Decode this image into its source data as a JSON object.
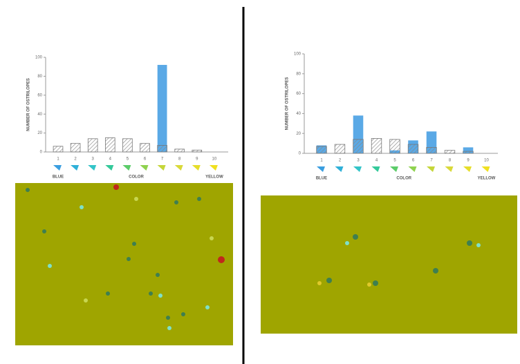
{
  "chart_data": [
    {
      "type": "bar",
      "ylabel": "NUMBER OF OSTRILOPES",
      "xlabel": "COLOR",
      "left_label": "BLUE",
      "right_label": "YELLOW",
      "categories": [
        "1",
        "2",
        "3",
        "4",
        "5",
        "6",
        "7",
        "8",
        "9",
        "10"
      ],
      "category_colors": [
        "#3a9ee0",
        "#2fb0d8",
        "#33c4c8",
        "#34c99a",
        "#5ccc6a",
        "#8fd24f",
        "#c5d63a",
        "#d9d93a",
        "#e6de2a",
        "#f0e020"
      ],
      "series": [
        {
          "color": "#5aa9e6",
          "fill": "solid",
          "values": [
            0,
            0,
            0,
            0,
            0,
            0,
            92,
            0,
            0,
            0
          ]
        },
        {
          "color": "#777777",
          "fill": "hatch",
          "values": [
            6,
            9,
            14,
            15,
            14,
            9,
            7,
            3,
            2,
            0
          ]
        }
      ],
      "ylim": [
        0,
        100
      ],
      "yticks": [
        0,
        20,
        40,
        60,
        80,
        100
      ]
    },
    {
      "type": "bar",
      "ylabel": "NUMBER OF OSTRILOPES",
      "xlabel": "COLOR",
      "left_label": "BLUE",
      "right_label": "YELLOW",
      "categories": [
        "1",
        "2",
        "3",
        "4",
        "5",
        "6",
        "7",
        "8",
        "9",
        "10"
      ],
      "category_colors": [
        "#3a9ee0",
        "#2fb0d8",
        "#33c4c8",
        "#34c99a",
        "#5ccc6a",
        "#8fd24f",
        "#c5d63a",
        "#d9d93a",
        "#e6de2a",
        "#f0e020"
      ],
      "series": [
        {
          "color": "#5aa9e6",
          "fill": "solid",
          "values": [
            8,
            0,
            38,
            0,
            3,
            13,
            22,
            0,
            6,
            0
          ]
        },
        {
          "color": "#777777",
          "fill": "hatch",
          "values": [
            7,
            9,
            14,
            15,
            14,
            9,
            6,
            3,
            2,
            0
          ]
        }
      ],
      "ylim": [
        0,
        100
      ],
      "yticks": [
        0,
        20,
        40,
        60,
        80,
        100
      ]
    }
  ]
}
